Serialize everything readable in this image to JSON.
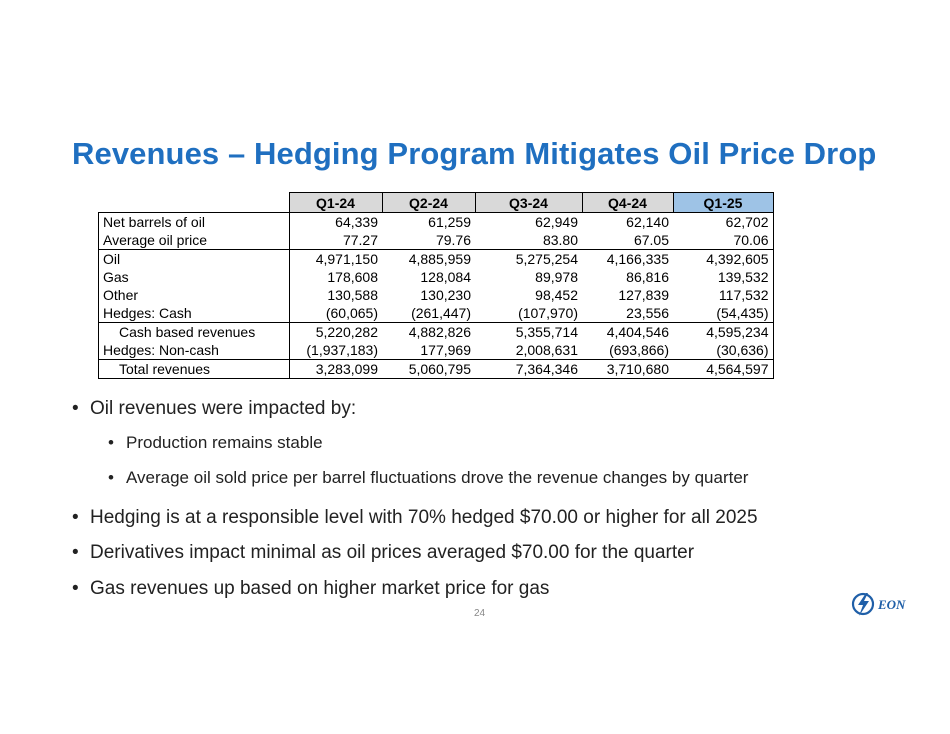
{
  "title": "Revenues – Hedging Program Mitigates Oil Price Drop",
  "table": {
    "headers": [
      "Q1-24",
      "Q2-24",
      "Q3-24",
      "Q4-24",
      "Q1-25"
    ],
    "rows": [
      {
        "label": "Net barrels of oil",
        "values": [
          "64,339",
          "61,259",
          "62,949",
          "62,140",
          "62,702"
        ]
      },
      {
        "label": "Average oil price",
        "values": [
          "77.27",
          "79.76",
          "83.80",
          "67.05",
          "70.06"
        ]
      },
      {
        "label": "Oil",
        "values": [
          "4,971,150",
          "4,885,959",
          "5,275,254",
          "4,166,335",
          "4,392,605"
        ]
      },
      {
        "label": "Gas",
        "values": [
          "178,608",
          "128,084",
          "89,978",
          "86,816",
          "139,532"
        ]
      },
      {
        "label": "Other",
        "values": [
          "130,588",
          "130,230",
          "98,452",
          "127,839",
          "117,532"
        ]
      },
      {
        "label": "Hedges: Cash",
        "values": [
          "(60,065)",
          "(261,447)",
          "(107,970)",
          "23,556",
          "(54,435)"
        ]
      },
      {
        "label": "Cash based revenues",
        "values": [
          "5,220,282",
          "4,882,826",
          "5,355,714",
          "4,404,546",
          "4,595,234"
        ]
      },
      {
        "label": "Hedges:  Non-cash",
        "values": [
          "(1,937,183)",
          "177,969",
          "2,008,631",
          "(693,866)",
          "(30,636)"
        ]
      },
      {
        "label": "Total revenues",
        "values": [
          "3,283,099",
          "5,060,795",
          "7,364,346",
          "3,710,680",
          "4,564,597"
        ]
      }
    ]
  },
  "bullets": [
    {
      "level": 1,
      "text": "Oil revenues were impacted by:"
    },
    {
      "level": 2,
      "text": "Production remains stable"
    },
    {
      "level": 2,
      "text": "Average oil sold price per barrel fluctuations drove the revenue changes by quarter"
    },
    {
      "level": 1,
      "text": "Hedging is at a responsible level with 70% hedged $70.00 or higher for all 2025"
    },
    {
      "level": 1,
      "text": "Derivatives impact minimal as oil prices averaged $70.00 for the quarter"
    },
    {
      "level": 1,
      "text": "Gas revenues up based on higher market price for gas"
    }
  ],
  "page_number": "24",
  "logo": {
    "text": "EON",
    "icon": "lightning-bolt-icon",
    "color": "#1f5fa8"
  },
  "colors": {
    "title": "#1f6fc0",
    "header_bg": "#d9d9d9",
    "highlight_header_bg": "#9ec3e6"
  }
}
